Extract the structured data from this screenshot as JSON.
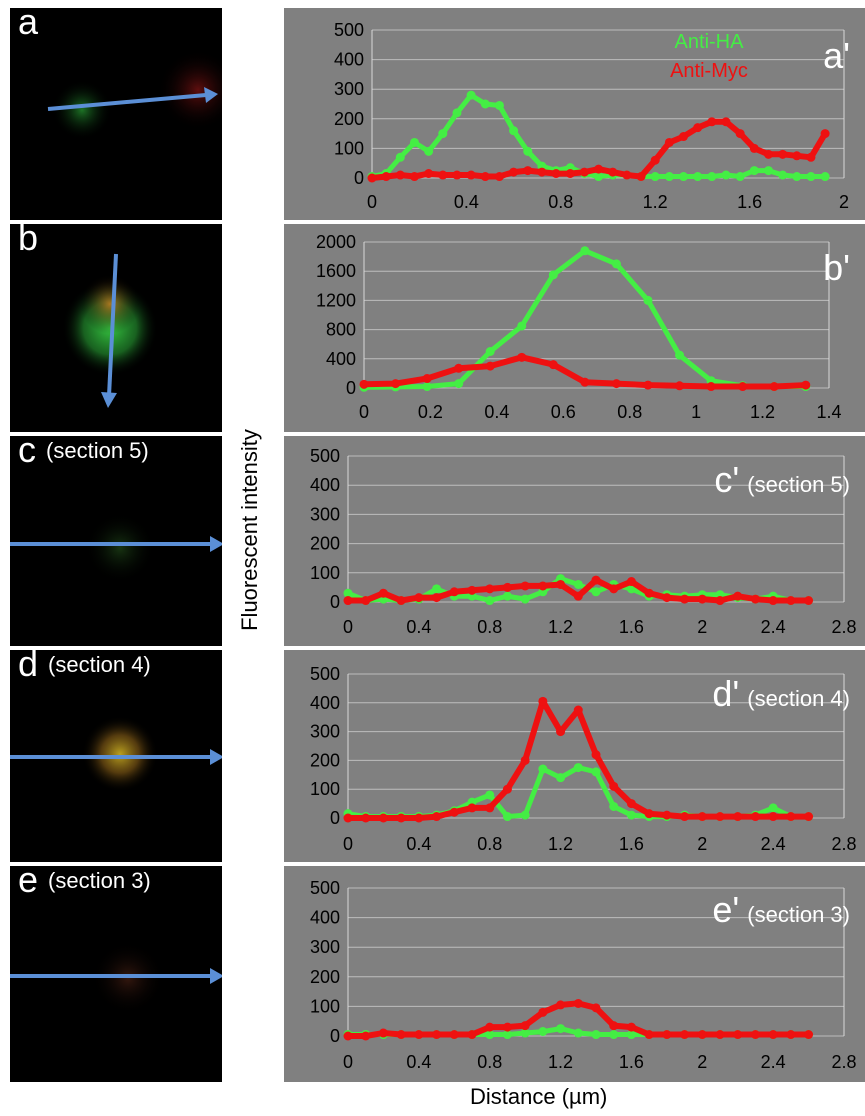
{
  "panels": [
    {
      "label": "a",
      "sub": ""
    },
    {
      "label": "b",
      "sub": ""
    },
    {
      "label": "c",
      "sub": "(section 5)"
    },
    {
      "label": "d",
      "sub": "(section 4)"
    },
    {
      "label": "e",
      "sub": "(section 3)"
    }
  ],
  "ylabel": "Fluorescent intensity",
  "xlabel": "Distance (µm)",
  "colors": {
    "anti_ha": "#44ee44",
    "anti_myc": "#ee1111",
    "plot_bg": "#808080",
    "arrow": "#5b8fd6"
  },
  "chart_data": [
    {
      "type": "line",
      "panel_label": "a'",
      "panel_sub": "",
      "legend": [
        "Anti-HA",
        "Anti-Myc"
      ],
      "xticks": [
        "0",
        "0.4",
        "0.8",
        "1.2",
        "1.6",
        "2"
      ],
      "yticks": [
        "0",
        "100",
        "200",
        "300",
        "400",
        "500"
      ],
      "xlim": [
        0,
        2
      ],
      "ylim": [
        0,
        500
      ],
      "series": [
        {
          "name": "Anti-HA",
          "x": [
            0,
            0.06,
            0.12,
            0.18,
            0.24,
            0.3,
            0.36,
            0.42,
            0.48,
            0.54,
            0.6,
            0.66,
            0.72,
            0.78,
            0.84,
            0.9,
            0.96,
            1.02,
            1.08,
            1.14,
            1.2,
            1.26,
            1.32,
            1.38,
            1.44,
            1.5,
            1.56,
            1.62,
            1.68,
            1.74,
            1.8,
            1.86,
            1.92
          ],
          "y": [
            5,
            15,
            70,
            120,
            90,
            150,
            220,
            280,
            250,
            245,
            160,
            90,
            40,
            25,
            35,
            15,
            5,
            10,
            10,
            5,
            5,
            5,
            5,
            5,
            5,
            10,
            5,
            25,
            25,
            10,
            5,
            5,
            5
          ]
        },
        {
          "name": "Anti-Myc",
          "x": [
            0,
            0.06,
            0.12,
            0.18,
            0.24,
            0.3,
            0.36,
            0.42,
            0.48,
            0.54,
            0.6,
            0.66,
            0.72,
            0.78,
            0.84,
            0.9,
            0.96,
            1.02,
            1.08,
            1.14,
            1.2,
            1.26,
            1.32,
            1.38,
            1.44,
            1.5,
            1.56,
            1.62,
            1.68,
            1.74,
            1.8,
            1.86,
            1.92
          ],
          "y": [
            0,
            5,
            10,
            5,
            15,
            10,
            10,
            10,
            5,
            5,
            20,
            25,
            20,
            15,
            15,
            20,
            30,
            20,
            10,
            5,
            60,
            120,
            140,
            170,
            190,
            190,
            150,
            100,
            80,
            80,
            75,
            70,
            150
          ]
        }
      ]
    },
    {
      "type": "line",
      "panel_label": "b'",
      "panel_sub": "",
      "xticks": [
        "0",
        "0.2",
        "0.4",
        "0.6",
        "0.8",
        "1",
        "1.2",
        "1.4"
      ],
      "yticks": [
        "0",
        "400",
        "800",
        "1200",
        "1600",
        "2000"
      ],
      "xlim": [
        0,
        1.4
      ],
      "ylim": [
        0,
        2000
      ],
      "series": [
        {
          "name": "Anti-HA",
          "x": [
            0,
            0.095,
            0.19,
            0.285,
            0.38,
            0.475,
            0.57,
            0.665,
            0.76,
            0.855,
            0.95,
            1.045,
            1.14,
            1.235,
            1.33
          ],
          "y": [
            10,
            15,
            20,
            60,
            500,
            850,
            1550,
            1880,
            1700,
            1200,
            450,
            100,
            30,
            20,
            20
          ]
        },
        {
          "name": "Anti-Myc",
          "x": [
            0,
            0.095,
            0.19,
            0.285,
            0.38,
            0.475,
            0.57,
            0.665,
            0.76,
            0.855,
            0.95,
            1.045,
            1.14,
            1.235,
            1.33
          ],
          "y": [
            50,
            60,
            130,
            270,
            300,
            420,
            320,
            80,
            60,
            40,
            30,
            20,
            20,
            20,
            40
          ]
        }
      ]
    },
    {
      "type": "line",
      "panel_label": "c'",
      "panel_sub": "(section 5)",
      "xticks": [
        "0",
        "0.4",
        "0.8",
        "1.2",
        "1.6",
        "2",
        "2.4",
        "2.8"
      ],
      "yticks": [
        "0",
        "100",
        "200",
        "300",
        "400",
        "500"
      ],
      "xlim": [
        0,
        2.8
      ],
      "ylim": [
        0,
        500
      ],
      "series": [
        {
          "name": "Anti-HA",
          "x": [
            0,
            0.1,
            0.2,
            0.3,
            0.4,
            0.5,
            0.6,
            0.7,
            0.8,
            0.9,
            1.0,
            1.1,
            1.2,
            1.3,
            1.4,
            1.5,
            1.6,
            1.7,
            1.8,
            1.9,
            2.0,
            2.1,
            2.2,
            2.3,
            2.4,
            2.5,
            2.6
          ],
          "y": [
            30,
            5,
            10,
            5,
            10,
            45,
            20,
            20,
            5,
            20,
            10,
            35,
            80,
            60,
            35,
            60,
            45,
            20,
            25,
            20,
            25,
            25,
            15,
            10,
            20,
            5,
            5
          ]
        },
        {
          "name": "Anti-Myc",
          "x": [
            0,
            0.1,
            0.2,
            0.3,
            0.4,
            0.5,
            0.6,
            0.7,
            0.8,
            0.9,
            1.0,
            1.1,
            1.2,
            1.3,
            1.4,
            1.5,
            1.6,
            1.7,
            1.8,
            1.9,
            2.0,
            2.1,
            2.2,
            2.3,
            2.4,
            2.5,
            2.6
          ],
          "y": [
            5,
            5,
            30,
            5,
            15,
            15,
            35,
            40,
            45,
            50,
            55,
            55,
            60,
            20,
            75,
            45,
            70,
            30,
            15,
            10,
            10,
            5,
            20,
            10,
            5,
            5,
            5
          ]
        }
      ]
    },
    {
      "type": "line",
      "panel_label": "d'",
      "panel_sub": "(section 4)",
      "xticks": [
        "0",
        "0.4",
        "0.8",
        "1.2",
        "1.6",
        "2",
        "2.4",
        "2.8"
      ],
      "yticks": [
        "0",
        "100",
        "200",
        "300",
        "400",
        "500"
      ],
      "xlim": [
        0,
        2.8
      ],
      "ylim": [
        0,
        500
      ],
      "series": [
        {
          "name": "Anti-HA",
          "x": [
            0,
            0.1,
            0.2,
            0.3,
            0.4,
            0.5,
            0.6,
            0.7,
            0.8,
            0.9,
            1.0,
            1.1,
            1.2,
            1.3,
            1.4,
            1.5,
            1.6,
            1.7,
            1.8,
            1.9,
            2.0,
            2.1,
            2.2,
            2.3,
            2.4,
            2.5,
            2.6
          ],
          "y": [
            15,
            5,
            5,
            5,
            5,
            10,
            25,
            55,
            80,
            5,
            10,
            170,
            140,
            175,
            160,
            40,
            10,
            5,
            5,
            10,
            5,
            5,
            5,
            10,
            35,
            5,
            5
          ]
        },
        {
          "name": "Anti-Myc",
          "x": [
            0,
            0.1,
            0.2,
            0.3,
            0.4,
            0.5,
            0.6,
            0.7,
            0.8,
            0.9,
            1.0,
            1.1,
            1.2,
            1.3,
            1.4,
            1.5,
            1.6,
            1.7,
            1.8,
            1.9,
            2.0,
            2.1,
            2.2,
            2.3,
            2.4,
            2.5,
            2.6
          ],
          "y": [
            0,
            0,
            0,
            0,
            0,
            5,
            20,
            35,
            35,
            100,
            200,
            405,
            300,
            375,
            220,
            110,
            50,
            15,
            10,
            5,
            5,
            5,
            5,
            5,
            5,
            5,
            5
          ]
        }
      ]
    },
    {
      "type": "line",
      "panel_label": "e'",
      "panel_sub": "(section 3)",
      "xticks": [
        "0",
        "0.4",
        "0.8",
        "1.2",
        "1.6",
        "2",
        "2.4",
        "2.8"
      ],
      "yticks": [
        "0",
        "100",
        "200",
        "300",
        "400",
        "500"
      ],
      "xlim": [
        0,
        2.8
      ],
      "ylim": [
        0,
        500
      ],
      "series": [
        {
          "name": "Anti-HA",
          "x": [
            0,
            0.1,
            0.2,
            0.3,
            0.4,
            0.5,
            0.6,
            0.7,
            0.8,
            0.9,
            1.0,
            1.1,
            1.2,
            1.3,
            1.4,
            1.5,
            1.6,
            1.7,
            1.8,
            1.9,
            2.0,
            2.1,
            2.2,
            2.3,
            2.4,
            2.5,
            2.6
          ],
          "y": [
            5,
            5,
            5,
            5,
            5,
            5,
            5,
            5,
            5,
            5,
            10,
            15,
            25,
            10,
            5,
            5,
            5,
            5,
            5,
            5,
            5,
            5,
            5,
            5,
            5,
            5,
            5
          ]
        },
        {
          "name": "Anti-Myc",
          "x": [
            0,
            0.1,
            0.2,
            0.3,
            0.4,
            0.5,
            0.6,
            0.7,
            0.8,
            0.9,
            1.0,
            1.1,
            1.2,
            1.3,
            1.4,
            1.5,
            1.6,
            1.7,
            1.8,
            1.9,
            2.0,
            2.1,
            2.2,
            2.3,
            2.4,
            2.5,
            2.6
          ],
          "y": [
            0,
            0,
            10,
            5,
            5,
            5,
            5,
            5,
            30,
            30,
            35,
            80,
            105,
            110,
            95,
            35,
            30,
            5,
            5,
            5,
            5,
            5,
            5,
            5,
            5,
            5,
            5
          ]
        }
      ]
    }
  ]
}
